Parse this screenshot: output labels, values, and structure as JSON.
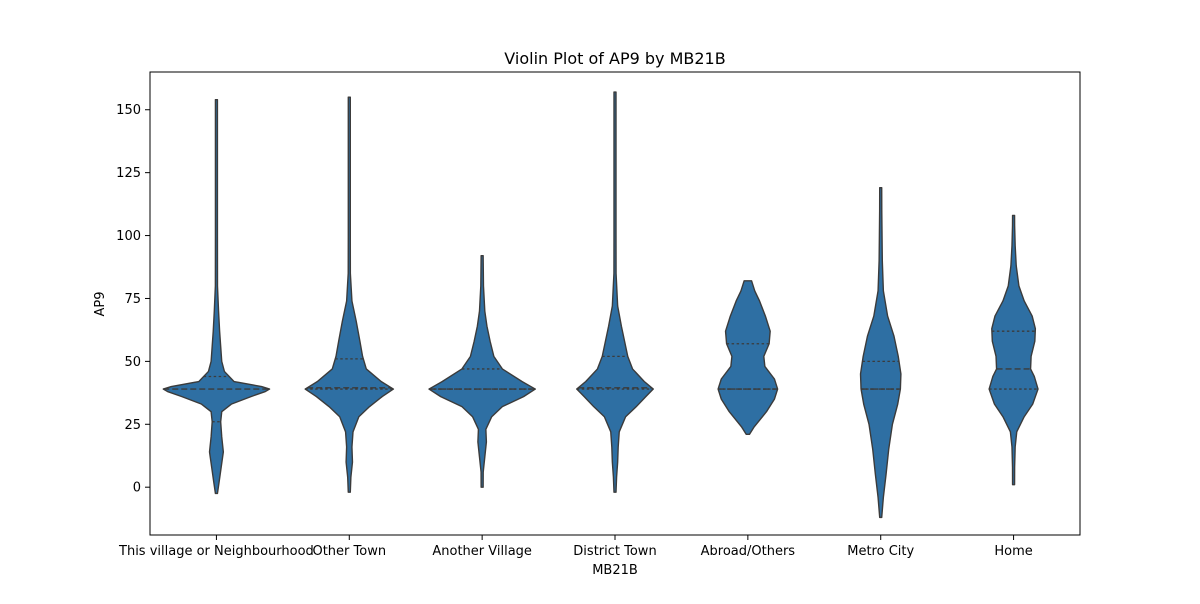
{
  "chart_data": {
    "type": "violin",
    "title": "Violin Plot of AP9 by MB21B",
    "xlabel": "MB21B",
    "ylabel": "AP9",
    "ylim": [
      -19,
      165
    ],
    "yticks": [
      0,
      25,
      50,
      75,
      100,
      125,
      150
    ],
    "inner": "quartile",
    "grid": false,
    "color": "#2e6fa3",
    "edge_color": "#3b3b3b",
    "categories": [
      "This village or Neighbourhood",
      "Other Town",
      "Another Village",
      "District Town",
      "Abroad/Others",
      "Metro City",
      "Home"
    ],
    "violins": [
      {
        "category": "This village or Neighbourhood",
        "min": -2.5,
        "max": 154,
        "quartiles": [
          26,
          39,
          44
        ],
        "profile": [
          [
            -2.5,
            0
          ],
          [
            2,
            0.05
          ],
          [
            8,
            0.09
          ],
          [
            14,
            0.13
          ],
          [
            20,
            0.1
          ],
          [
            26,
            0.08
          ],
          [
            30,
            0.1
          ],
          [
            33,
            0.28
          ],
          [
            36,
            0.65
          ],
          [
            38,
            0.92
          ],
          [
            39,
            1.0
          ],
          [
            40,
            0.85
          ],
          [
            42,
            0.33
          ],
          [
            46,
            0.15
          ],
          [
            50,
            0.1
          ],
          [
            56,
            0.08
          ],
          [
            62,
            0.06
          ],
          [
            70,
            0.04
          ],
          [
            80,
            0.02
          ],
          [
            100,
            0.012
          ],
          [
            125,
            0.01
          ],
          [
            154,
            0.01
          ]
        ]
      },
      {
        "category": "Other Town",
        "min": -2,
        "max": 155,
        "quartiles": [
          39,
          39.5,
          51
        ],
        "profile": [
          [
            -2,
            0
          ],
          [
            4,
            0.03
          ],
          [
            10,
            0.06
          ],
          [
            16,
            0.05
          ],
          [
            22,
            0.07
          ],
          [
            28,
            0.18
          ],
          [
            32,
            0.38
          ],
          [
            36,
            0.62
          ],
          [
            39,
            0.83
          ],
          [
            42,
            0.6
          ],
          [
            47,
            0.32
          ],
          [
            52,
            0.25
          ],
          [
            58,
            0.2
          ],
          [
            66,
            0.13
          ],
          [
            74,
            0.05
          ],
          [
            85,
            0.02
          ],
          [
            100,
            0.012
          ],
          [
            125,
            0.01
          ],
          [
            155,
            0.01
          ]
        ]
      },
      {
        "category": "Another Village",
        "min": 0,
        "max": 92,
        "quartiles": [
          39,
          39,
          47
        ],
        "profile": [
          [
            0,
            0
          ],
          [
            6,
            0.02
          ],
          [
            12,
            0.05
          ],
          [
            18,
            0.08
          ],
          [
            23,
            0.07
          ],
          [
            28,
            0.18
          ],
          [
            32,
            0.38
          ],
          [
            36,
            0.78
          ],
          [
            39,
            1.0
          ],
          [
            42,
            0.75
          ],
          [
            47,
            0.38
          ],
          [
            52,
            0.22
          ],
          [
            58,
            0.15
          ],
          [
            64,
            0.09
          ],
          [
            70,
            0.05
          ],
          [
            80,
            0.025
          ],
          [
            92,
            0.01
          ]
        ]
      },
      {
        "category": "District Town",
        "min": -2,
        "max": 157,
        "quartiles": [
          39,
          39.5,
          52
        ],
        "profile": [
          [
            -2,
            0
          ],
          [
            4,
            0.03
          ],
          [
            10,
            0.05
          ],
          [
            16,
            0.06
          ],
          [
            22,
            0.08
          ],
          [
            28,
            0.2
          ],
          [
            32,
            0.4
          ],
          [
            36,
            0.58
          ],
          [
            39,
            0.72
          ],
          [
            42,
            0.55
          ],
          [
            47,
            0.33
          ],
          [
            52,
            0.24
          ],
          [
            58,
            0.18
          ],
          [
            64,
            0.12
          ],
          [
            72,
            0.05
          ],
          [
            85,
            0.02
          ],
          [
            100,
            0.012
          ],
          [
            125,
            0.01
          ],
          [
            157,
            0.01
          ]
        ]
      },
      {
        "category": "Abroad/Others",
        "min": 21,
        "max": 82,
        "quartiles": [
          39,
          39,
          57
        ],
        "profile": [
          [
            21,
            0.03
          ],
          [
            24,
            0.12
          ],
          [
            30,
            0.35
          ],
          [
            35,
            0.5
          ],
          [
            39,
            0.56
          ],
          [
            43,
            0.5
          ],
          [
            48,
            0.32
          ],
          [
            52,
            0.3
          ],
          [
            57,
            0.4
          ],
          [
            62,
            0.42
          ],
          [
            68,
            0.33
          ],
          [
            74,
            0.22
          ],
          [
            78,
            0.13
          ],
          [
            82,
            0.07
          ]
        ]
      },
      {
        "category": "Metro City",
        "min": -12,
        "max": 119,
        "quartiles": [
          39,
          39,
          50
        ],
        "profile": [
          [
            -12,
            0
          ],
          [
            -4,
            0.05
          ],
          [
            5,
            0.1
          ],
          [
            15,
            0.15
          ],
          [
            25,
            0.22
          ],
          [
            33,
            0.32
          ],
          [
            39,
            0.37
          ],
          [
            45,
            0.38
          ],
          [
            52,
            0.33
          ],
          [
            60,
            0.25
          ],
          [
            68,
            0.13
          ],
          [
            78,
            0.05
          ],
          [
            90,
            0.03
          ],
          [
            100,
            0.025
          ],
          [
            110,
            0.02
          ],
          [
            119,
            0.01
          ]
        ]
      },
      {
        "category": "Home",
        "min": 1,
        "max": 108,
        "quartiles": [
          39,
          47,
          62
        ],
        "profile": [
          [
            1,
            0
          ],
          [
            8,
            0.02
          ],
          [
            16,
            0.03
          ],
          [
            22,
            0.06
          ],
          [
            28,
            0.2
          ],
          [
            33,
            0.36
          ],
          [
            39,
            0.46
          ],
          [
            44,
            0.39
          ],
          [
            47,
            0.32
          ],
          [
            52,
            0.33
          ],
          [
            58,
            0.4
          ],
          [
            63,
            0.41
          ],
          [
            68,
            0.35
          ],
          [
            74,
            0.2
          ],
          [
            80,
            0.1
          ],
          [
            88,
            0.05
          ],
          [
            96,
            0.03
          ],
          [
            104,
            0.02
          ],
          [
            108,
            0.01
          ]
        ]
      }
    ]
  }
}
